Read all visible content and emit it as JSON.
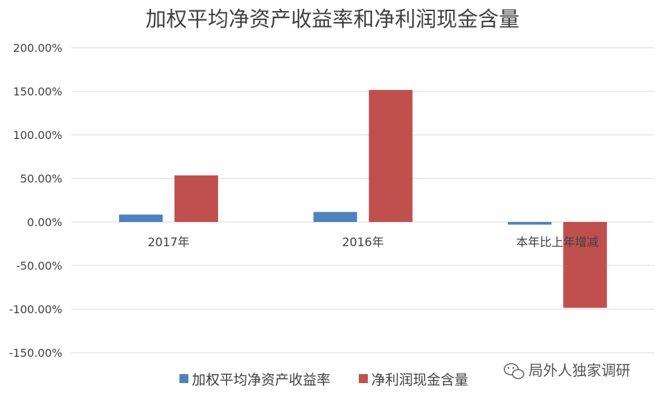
{
  "chart_data": {
    "type": "bar",
    "title": "加权平均净资产收益率和净利润现金含量",
    "categories": [
      "2017年",
      "2016年",
      "本年比上年增减"
    ],
    "series": [
      {
        "name": "加权平均净资产收益率",
        "color": "#4f81bd",
        "values": [
          8.5,
          11.5,
          -3.0
        ]
      },
      {
        "name": "净利润现金含量",
        "color": "#c0504d",
        "values": [
          53.5,
          151.5,
          -98.5
        ]
      }
    ],
    "y_ticks": [
      "200.00%",
      "150.00%",
      "100.00%",
      "50.00%",
      "0.00%",
      "-50.00%",
      "-100.00%",
      "-150.00%"
    ],
    "ylim": [
      -150,
      200
    ],
    "ylabel": "",
    "xlabel": "",
    "grid": true,
    "legend_position": "bottom"
  },
  "watermark": {
    "text": "局外人独家调研",
    "icon": "wechat-icon"
  }
}
